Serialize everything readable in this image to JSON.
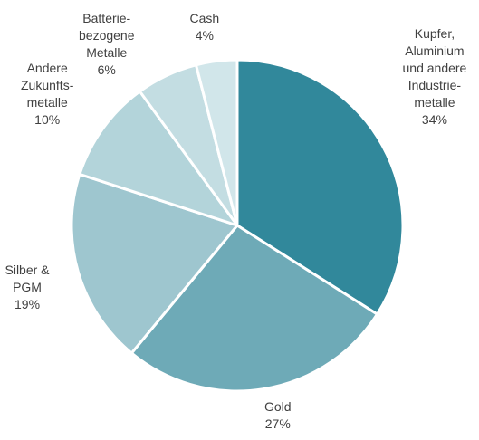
{
  "chart_data": {
    "type": "pie",
    "title": "",
    "slices": [
      {
        "label": "Kupfer, Aluminium und andere Industrie-metalle",
        "label_lines": [
          "Kupfer,",
          "Aluminium",
          "und andere",
          "Industrie-",
          "metalle"
        ],
        "value": 34,
        "value_label": "34%",
        "color": "#31889b"
      },
      {
        "label": "Gold",
        "label_lines": [
          "Gold"
        ],
        "value": 27,
        "value_label": "27%",
        "color": "#6eaab7"
      },
      {
        "label": "Silber & PGM",
        "label_lines": [
          "Silber &",
          "PGM"
        ],
        "value": 19,
        "value_label": "19%",
        "color": "#9ec6cf"
      },
      {
        "label": "Andere Zukunfts-metalle",
        "label_lines": [
          "Andere",
          "Zukunfts-",
          "metalle"
        ],
        "value": 10,
        "value_label": "10%",
        "color": "#b3d4da"
      },
      {
        "label": "Batterie-bezogene Metalle",
        "label_lines": [
          "Batterie-",
          "bezogene",
          "Metalle"
        ],
        "value": 6,
        "value_label": "6%",
        "color": "#c3dde2"
      },
      {
        "label": "Cash",
        "label_lines": [
          "Cash"
        ],
        "value": 4,
        "value_label": "4%",
        "color": "#d1e6ea"
      }
    ],
    "start_angle_deg": 0,
    "direction": "clockwise"
  }
}
